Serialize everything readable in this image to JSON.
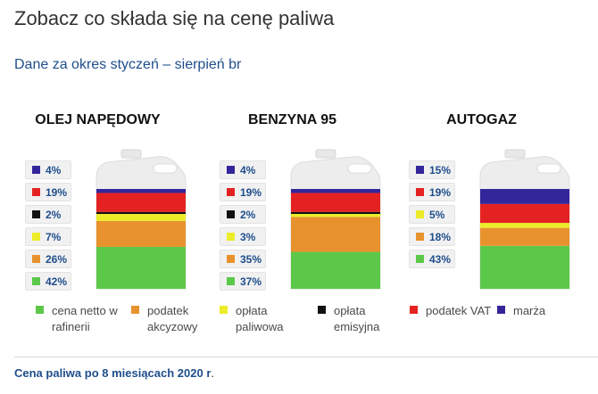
{
  "page": {
    "title": "Zobacz co składa się na cenę paliwa",
    "subtitle": "Dane za okres styczeń – sierpień br",
    "footer_bold": "Cena paliwa po 8 miesiącach 2020 r",
    "footer_rest": "."
  },
  "colors": {
    "cena_netto": "#5cc84a",
    "akcyza": "#e8922e",
    "oplata_paliwowa": "#ecec2a",
    "oplata_emisyjna": "#111111",
    "vat": "#e52222",
    "marza": "#33269a"
  },
  "legend": [
    {
      "key": "cena_netto",
      "label": "cena netto w rafinerii"
    },
    {
      "key": "akcyza",
      "label": "podatek akcyzowy"
    },
    {
      "key": "oplata_paliwowa",
      "label": "opłata paliwowa"
    },
    {
      "key": "oplata_emisyjna",
      "label": "opłata emisyjna"
    },
    {
      "key": "vat",
      "label": "podatek VAT"
    },
    {
      "key": "marza",
      "label": "marża"
    }
  ],
  "chart_data": [
    {
      "type": "bar",
      "title": "OLEJ NAPĘDOWY",
      "stack_order_bottom_to_top": [
        "cena_netto",
        "akcyza",
        "oplata_paliwowa",
        "oplata_emisyjna",
        "vat",
        "marza"
      ],
      "values": {
        "cena_netto": 42,
        "akcyza": 26,
        "oplata_paliwowa": 7,
        "oplata_emisyjna": 2,
        "vat": 19,
        "marza": 4
      },
      "labels": [
        {
          "key": "marza",
          "text": "4%"
        },
        {
          "key": "vat",
          "text": "19%"
        },
        {
          "key": "oplata_emisyjna",
          "text": "2%"
        },
        {
          "key": "oplata_paliwowa",
          "text": "7%"
        },
        {
          "key": "akcyza",
          "text": "26%"
        },
        {
          "key": "cena_netto",
          "text": "42%"
        }
      ]
    },
    {
      "type": "bar",
      "title": "BENZYNA 95",
      "stack_order_bottom_to_top": [
        "cena_netto",
        "akcyza",
        "oplata_paliwowa",
        "oplata_emisyjna",
        "vat",
        "marza"
      ],
      "values": {
        "cena_netto": 37,
        "akcyza": 35,
        "oplata_paliwowa": 3,
        "oplata_emisyjna": 2,
        "vat": 19,
        "marza": 4
      },
      "labels": [
        {
          "key": "marza",
          "text": "4%"
        },
        {
          "key": "vat",
          "text": "19%"
        },
        {
          "key": "oplata_emisyjna",
          "text": "2%"
        },
        {
          "key": "oplata_paliwowa",
          "text": "3%"
        },
        {
          "key": "akcyza",
          "text": "35%"
        },
        {
          "key": "cena_netto",
          "text": "37%"
        }
      ]
    },
    {
      "type": "bar",
      "title": "AUTOGAZ",
      "stack_order_bottom_to_top": [
        "cena_netto",
        "akcyza",
        "oplata_paliwowa",
        "vat",
        "marza"
      ],
      "values": {
        "cena_netto": 43,
        "akcyza": 18,
        "oplata_paliwowa": 5,
        "vat": 19,
        "marza": 15
      },
      "labels": [
        {
          "key": "marza",
          "text": "15%"
        },
        {
          "key": "vat",
          "text": "19%"
        },
        {
          "key": "oplata_paliwowa",
          "text": "5%"
        },
        {
          "key": "akcyza",
          "text": "18%"
        },
        {
          "key": "cena_netto",
          "text": "43%"
        }
      ]
    }
  ]
}
